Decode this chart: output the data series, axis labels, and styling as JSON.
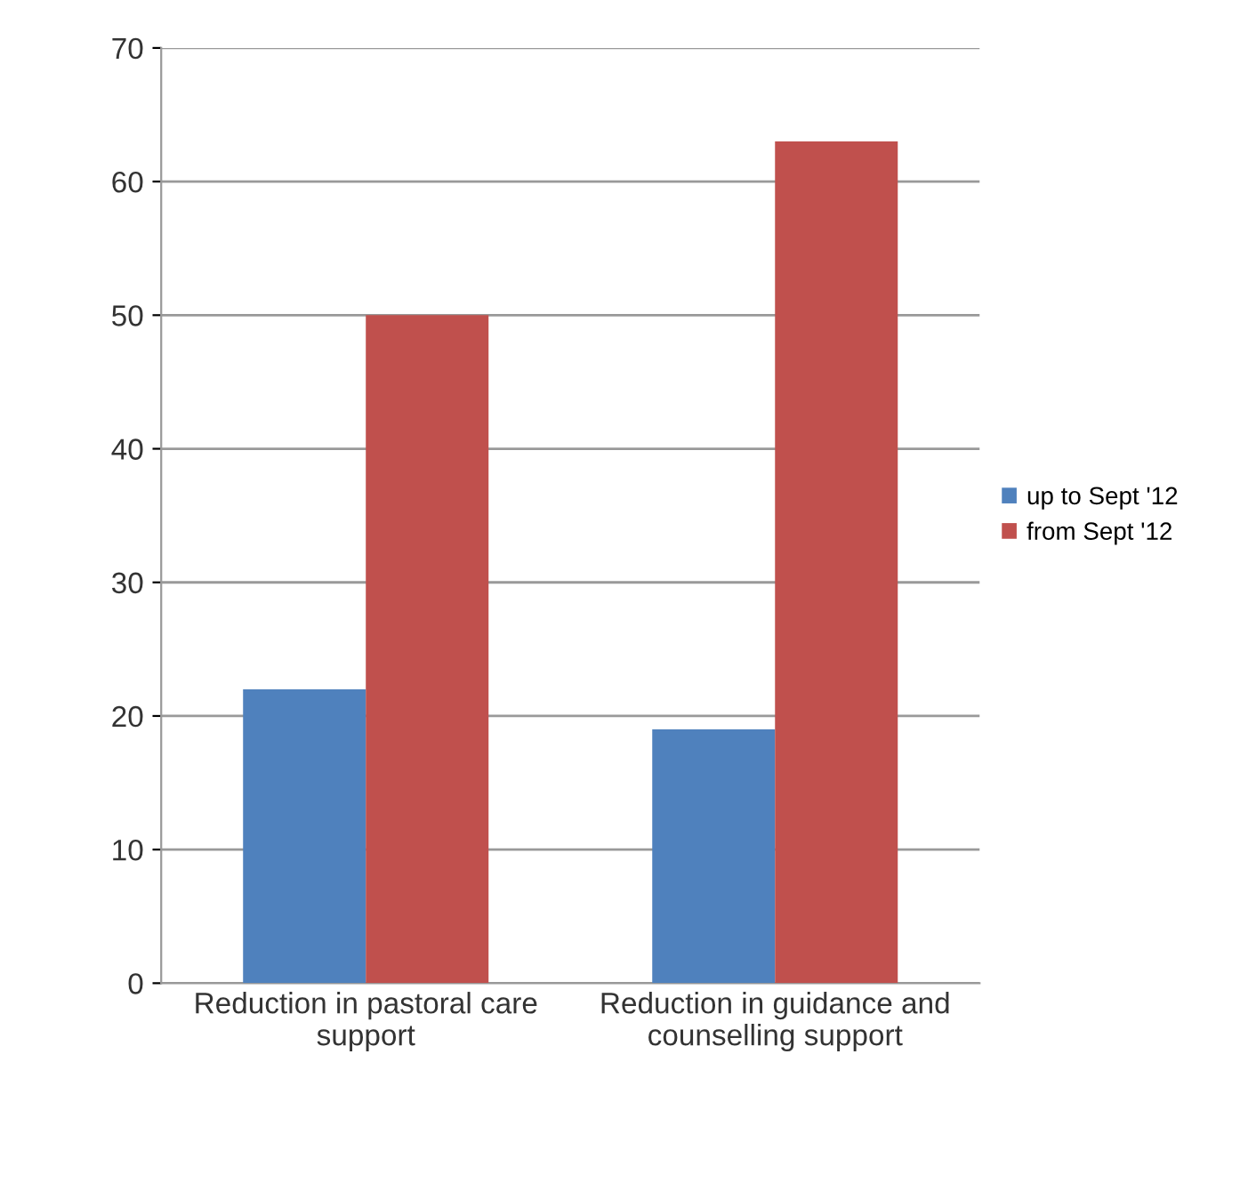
{
  "chart_data": {
    "type": "bar",
    "categories": [
      "Reduction in pastoral care support",
      "Reduction in guidance and counselling support"
    ],
    "series": [
      {
        "name": "up to Sept '12",
        "color": "#4f81bd",
        "values": [
          22,
          19
        ]
      },
      {
        "name": "from Sept '12",
        "color": "#c0504d",
        "values": [
          50,
          63
        ]
      }
    ],
    "ylim": [
      0,
      70
    ],
    "yticks": [
      0,
      10,
      20,
      30,
      40,
      50,
      60,
      70
    ],
    "grid": "y",
    "legend": "right"
  }
}
